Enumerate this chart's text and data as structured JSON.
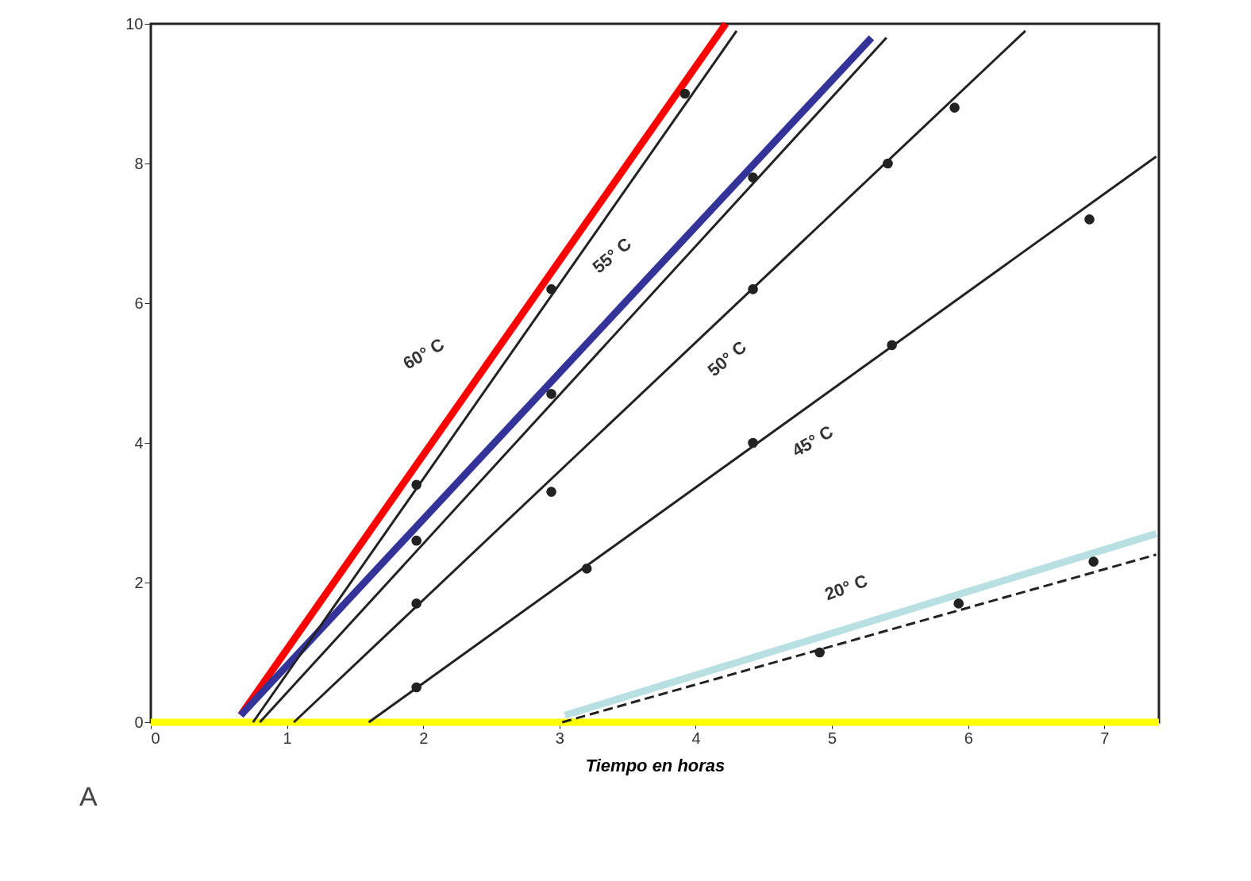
{
  "chart_data": {
    "type": "line",
    "xlabel": "Tiempo en horas",
    "xlim": [
      0,
      7.4
    ],
    "ylim": [
      0,
      10
    ],
    "xticks": [
      0,
      1,
      2,
      3,
      4,
      5,
      6,
      7
    ],
    "yticks": [
      0,
      2,
      4,
      6,
      8,
      10
    ],
    "grid": false,
    "series": [
      {
        "color": "#ff0000",
        "marker": "none",
        "x": [
          0.66,
          4.22
        ],
        "values": [
          0.1,
          10
        ]
      },
      {
        "color": "#333399",
        "marker": "none",
        "x": [
          0.66,
          5.29
        ],
        "values": [
          0.1,
          9.8
        ]
      },
      {
        "color": "#b8dfe2",
        "marker": "none",
        "x": [
          3.04,
          7.38
        ],
        "values": [
          0.1,
          2.7
        ]
      },
      {
        "color": "#ffff00",
        "marker": "none",
        "x": [
          0,
          7.4
        ],
        "values": [
          0,
          0
        ]
      },
      {
        "color": "#222222",
        "marker": "none",
        "x": [
          0.75,
          4.3
        ],
        "values": [
          0,
          9.9
        ]
      },
      {
        "type": "scatter",
        "color": "#222222",
        "marker": "circle",
        "x": [
          1.95,
          2.94,
          3.92
        ],
        "values": [
          3.4,
          6.2,
          9.0
        ]
      },
      {
        "color": "#222222",
        "marker": "none",
        "x": [
          0.8,
          5.4
        ],
        "values": [
          0,
          9.8
        ]
      },
      {
        "type": "scatter",
        "color": "#222222",
        "marker": "circle",
        "x": [
          1.95,
          2.94,
          4.42
        ],
        "values": [
          2.6,
          4.7,
          7.8
        ]
      },
      {
        "color": "#222222",
        "marker": "none",
        "x": [
          1.05,
          6.42
        ],
        "values": [
          0,
          9.9
        ]
      },
      {
        "type": "scatter",
        "color": "#222222",
        "marker": "circle",
        "x": [
          1.95,
          2.94,
          4.42,
          5.41,
          5.9
        ],
        "values": [
          1.7,
          3.3,
          6.2,
          8.0,
          8.8
        ]
      },
      {
        "color": "#222222",
        "marker": "none",
        "x": [
          1.6,
          7.38
        ],
        "values": [
          0,
          8.1
        ]
      },
      {
        "type": "scatter",
        "color": "#222222",
        "marker": "circle",
        "x": [
          1.95,
          3.2,
          4.42,
          5.44,
          6.89
        ],
        "values": [
          0.5,
          2.2,
          4.0,
          5.4,
          7.2
        ]
      },
      {
        "color": "#222222",
        "marker": "none",
        "line_style": "dashed",
        "x": [
          3.02,
          7.38
        ],
        "values": [
          0,
          2.4
        ]
      },
      {
        "type": "scatter",
        "color": "#222222",
        "marker": "circle",
        "x": [
          4.91,
          5.93,
          6.92
        ],
        "values": [
          1.0,
          1.7,
          2.3
        ]
      }
    ],
    "annotations": [
      "60° C",
      "55° C",
      "50° C",
      "45° C",
      "20° C",
      "A"
    ]
  }
}
